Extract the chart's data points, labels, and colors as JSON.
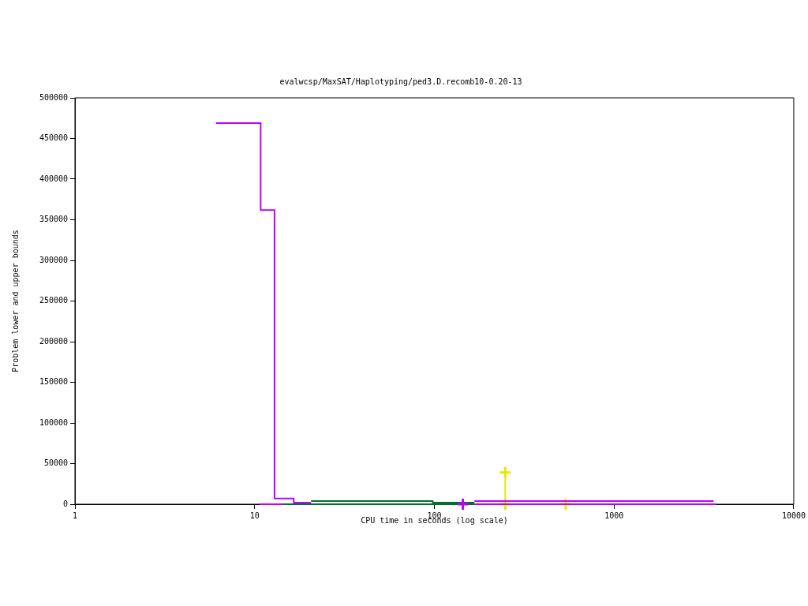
{
  "chart_data": {
    "type": "step",
    "title": "evalwcsp/MaxSAT/Haplotyping/ped3.D.recomb10-0.20-13",
    "xlabel": "CPU time in seconds (log scale)",
    "ylabel": "Problem lower and upper bounds",
    "log": "x",
    "grid": false,
    "legend": false,
    "xlim": [
      1,
      10000
    ],
    "xticks": [
      1,
      10,
      100,
      1000,
      10000
    ],
    "ylim": [
      0,
      500000
    ],
    "yticks": [
      0,
      50000,
      100000,
      150000,
      200000,
      250000,
      300000,
      350000,
      400000,
      450000,
      500000
    ],
    "series": [
      {
        "color": "#c000ff",
        "marker": "none",
        "x": [
          6.1,
          10.8,
          12.9,
          16.5,
          20.6
        ],
        "values": [
          469000,
          362000,
          7000,
          2000,
          2000
        ]
      },
      {
        "color": "#c000ff",
        "marker": "none",
        "x": [
          167,
          3580
        ],
        "values": [
          4000,
          4000
        ]
      },
      {
        "color": "#c000ff",
        "marker": "none",
        "x": [
          10.6,
          14.4,
          100,
          167,
          3700
        ],
        "values": [
          0,
          0,
          null,
          0,
          0
        ]
      },
      {
        "type": "scatter",
        "color": "#c000ff",
        "marker": "cross",
        "x": [
          144
        ],
        "values": [
          0
        ]
      },
      {
        "color": "#e8e800",
        "marker": "cross",
        "x": [
          248,
          248,
          538
        ],
        "values": [
          39000,
          0,
          0
        ]
      },
      {
        "color": "#007030",
        "marker": "none",
        "x": [
          20.6,
          98,
          167
        ],
        "values": [
          4000,
          2000,
          2000
        ]
      },
      {
        "color": "#007030",
        "marker": "none",
        "x": [
          14.4,
          167
        ],
        "values": [
          0,
          0
        ]
      }
    ]
  }
}
